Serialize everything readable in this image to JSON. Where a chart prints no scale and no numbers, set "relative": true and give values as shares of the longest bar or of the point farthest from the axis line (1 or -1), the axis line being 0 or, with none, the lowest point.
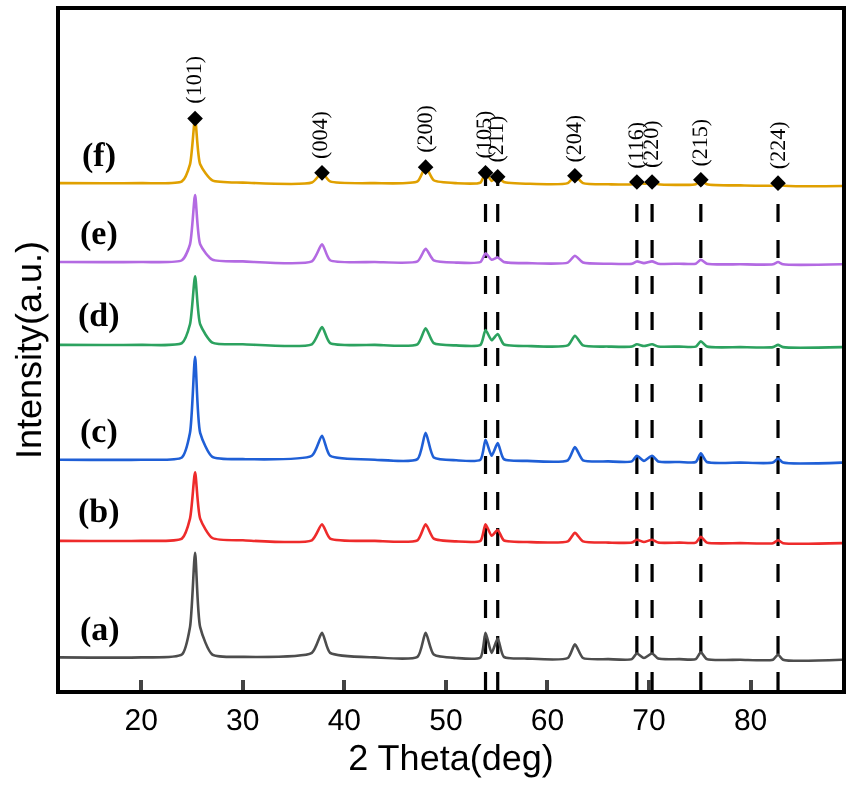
{
  "chart_data": {
    "type": "line",
    "relative": true,
    "xlabel": "2 Theta(deg)",
    "ylabel": "Intensity(a.u.)",
    "x": [
      12,
      20,
      24,
      24.8,
      25.3,
      25.8,
      27,
      30,
      36.8,
      37.8,
      38.6,
      43,
      47.2,
      48.0,
      48.8,
      51,
      53.4,
      53.9,
      54.5,
      55.1,
      55.7,
      58,
      62.0,
      62.7,
      63.5,
      66,
      68.3,
      68.8,
      69.5,
      70.3,
      70.9,
      73,
      74.6,
      75.1,
      75.7,
      79,
      82.2,
      82.7,
      83.2,
      89
    ],
    "xlim": [
      12,
      89
    ],
    "xticks": [
      20,
      30,
      40,
      50,
      60,
      70,
      80
    ],
    "grid": false,
    "legend": false,
    "series": [
      {
        "name": "(a)",
        "color": "#4d4d4d",
        "values": [
          0.057,
          0.057,
          0.062,
          0.11,
          0.24,
          0.11,
          0.062,
          0.058,
          0.065,
          0.1,
          0.065,
          0.057,
          0.058,
          0.1,
          0.062,
          0.056,
          0.057,
          0.1,
          0.065,
          0.09,
          0.058,
          0.055,
          0.056,
          0.08,
          0.056,
          0.054,
          0.054,
          0.064,
          0.056,
          0.064,
          0.055,
          0.054,
          0.054,
          0.066,
          0.054,
          0.053,
          0.053,
          0.062,
          0.053,
          0.053
        ]
      },
      {
        "name": "(b)",
        "color": "#ee2b2b",
        "values": [
          0.261,
          0.261,
          0.265,
          0.3,
          0.381,
          0.3,
          0.266,
          0.262,
          0.262,
          0.29,
          0.265,
          0.261,
          0.262,
          0.29,
          0.265,
          0.26,
          0.261,
          0.29,
          0.27,
          0.28,
          0.262,
          0.259,
          0.26,
          0.275,
          0.26,
          0.258,
          0.258,
          0.263,
          0.259,
          0.263,
          0.258,
          0.258,
          0.258,
          0.268,
          0.258,
          0.257,
          0.257,
          0.262,
          0.257,
          0.257
        ]
      },
      {
        "name": "(c)",
        "color": "#1f5fd6",
        "values": [
          0.403,
          0.403,
          0.407,
          0.45,
          0.583,
          0.45,
          0.408,
          0.404,
          0.41,
          0.445,
          0.41,
          0.403,
          0.404,
          0.45,
          0.407,
          0.402,
          0.403,
          0.438,
          0.41,
          0.432,
          0.404,
          0.401,
          0.402,
          0.425,
          0.402,
          0.4,
          0.4,
          0.41,
          0.401,
          0.41,
          0.4,
          0.399,
          0.399,
          0.414,
          0.399,
          0.398,
          0.398,
          0.405,
          0.398,
          0.398
        ]
      },
      {
        "name": "(d)",
        "color": "#2ca25f",
        "values": [
          0.604,
          0.604,
          0.607,
          0.64,
          0.724,
          0.64,
          0.608,
          0.605,
          0.605,
          0.635,
          0.607,
          0.604,
          0.605,
          0.633,
          0.607,
          0.603,
          0.604,
          0.63,
          0.612,
          0.623,
          0.605,
          0.602,
          0.603,
          0.62,
          0.603,
          0.601,
          0.601,
          0.605,
          0.602,
          0.605,
          0.601,
          0.601,
          0.601,
          0.61,
          0.601,
          0.6,
          0.6,
          0.604,
          0.6,
          0.6
        ]
      },
      {
        "name": "(e)",
        "color": "#b36ae2",
        "values": [
          0.749,
          0.749,
          0.752,
          0.78,
          0.866,
          0.78,
          0.753,
          0.75,
          0.75,
          0.78,
          0.752,
          0.749,
          0.75,
          0.772,
          0.752,
          0.748,
          0.749,
          0.764,
          0.753,
          0.757,
          0.749,
          0.747,
          0.748,
          0.76,
          0.748,
          0.746,
          0.746,
          0.75,
          0.747,
          0.75,
          0.746,
          0.746,
          0.746,
          0.753,
          0.746,
          0.745,
          0.745,
          0.749,
          0.745,
          0.745
        ]
      },
      {
        "name": "(f)",
        "color": "#e0a000",
        "values": [
          0.887,
          0.887,
          0.89,
          0.92,
          1.0,
          0.92,
          0.892,
          0.888,
          0.888,
          0.905,
          0.89,
          0.887,
          0.89,
          0.915,
          0.892,
          0.887,
          0.888,
          0.905,
          0.891,
          0.898,
          0.889,
          0.886,
          0.887,
          0.9,
          0.887,
          0.885,
          0.885,
          0.889,
          0.886,
          0.889,
          0.885,
          0.884,
          0.885,
          0.893,
          0.885,
          0.883,
          0.883,
          0.887,
          0.883,
          0.882
        ]
      },
      {
        "type": "scatter",
        "marker": "diamond",
        "color": "#000000",
        "x": [
          25.3,
          37.8,
          48.0,
          53.9,
          55.1,
          62.7,
          68.8,
          70.3,
          75.1,
          82.7
        ],
        "values": [
          1.0,
          0.905,
          0.915,
          0.905,
          0.898,
          0.9,
          0.889,
          0.889,
          0.893,
          0.887
        ]
      }
    ],
    "ref_lines": [
      {
        "axis": "x",
        "value": 53.9,
        "color": "#000000",
        "line_style": "dashed"
      },
      {
        "axis": "x",
        "value": 55.1,
        "color": "#000000",
        "line_style": "dashed"
      },
      {
        "axis": "x",
        "value": 68.8,
        "color": "#000000",
        "line_style": "dashed"
      },
      {
        "axis": "x",
        "value": 70.3,
        "color": "#000000",
        "line_style": "dashed"
      },
      {
        "axis": "x",
        "value": 75.1,
        "color": "#000000",
        "line_style": "dashed"
      },
      {
        "axis": "x",
        "value": 82.7,
        "color": "#000000",
        "line_style": "dashed"
      }
    ],
    "annotations": [
      {
        "text": "(101)",
        "x": 25.3,
        "y": 1.0
      },
      {
        "text": "(004)",
        "x": 37.8,
        "y": 0.905
      },
      {
        "text": "(200)",
        "x": 48.0,
        "y": 0.915
      },
      {
        "text": "(105)",
        "x": 53.9,
        "y": 0.905
      },
      {
        "text": "(211)",
        "x": 55.1,
        "y": 0.898
      },
      {
        "text": "(204)",
        "x": 62.7,
        "y": 0.9
      },
      {
        "text": "(116)",
        "x": 68.8,
        "y": 0.889
      },
      {
        "text": "(220)",
        "x": 70.3,
        "y": 0.889
      },
      {
        "text": "(215)",
        "x": 75.1,
        "y": 0.893
      },
      {
        "text": "(224)",
        "x": 82.7,
        "y": 0.887
      }
    ]
  }
}
